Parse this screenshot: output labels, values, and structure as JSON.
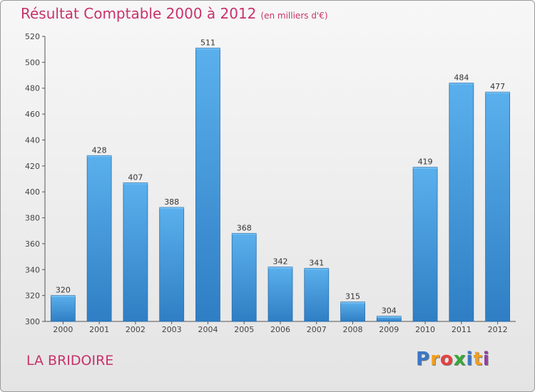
{
  "chart_data": {
    "type": "bar",
    "title": "Résultat Comptable 2000 à 2012",
    "subtitle": "(en milliers d'€)",
    "categories": [
      "2000",
      "2001",
      "2002",
      "2003",
      "2004",
      "2005",
      "2006",
      "2007",
      "2008",
      "2009",
      "2010",
      "2011",
      "2012"
    ],
    "values": [
      320,
      428,
      407,
      388,
      511,
      368,
      342,
      341,
      315,
      304,
      419,
      484,
      477
    ],
    "ylim": [
      300,
      520
    ],
    "yticks": [
      300,
      320,
      340,
      360,
      380,
      400,
      420,
      440,
      460,
      480,
      500,
      520
    ],
    "xlabel": "",
    "ylabel": "",
    "grid": false,
    "bar_color": "#4a9fde"
  },
  "footer": {
    "place": "LA BRIDOIRE"
  },
  "logo": {
    "letters": [
      "P",
      "r",
      "o",
      "x",
      "i",
      "t",
      "i"
    ],
    "colors": [
      "#3a78c8",
      "#f0a020",
      "#e84040",
      "#38a838",
      "#3a78c8",
      "#f0a020",
      "#9040a0"
    ]
  }
}
